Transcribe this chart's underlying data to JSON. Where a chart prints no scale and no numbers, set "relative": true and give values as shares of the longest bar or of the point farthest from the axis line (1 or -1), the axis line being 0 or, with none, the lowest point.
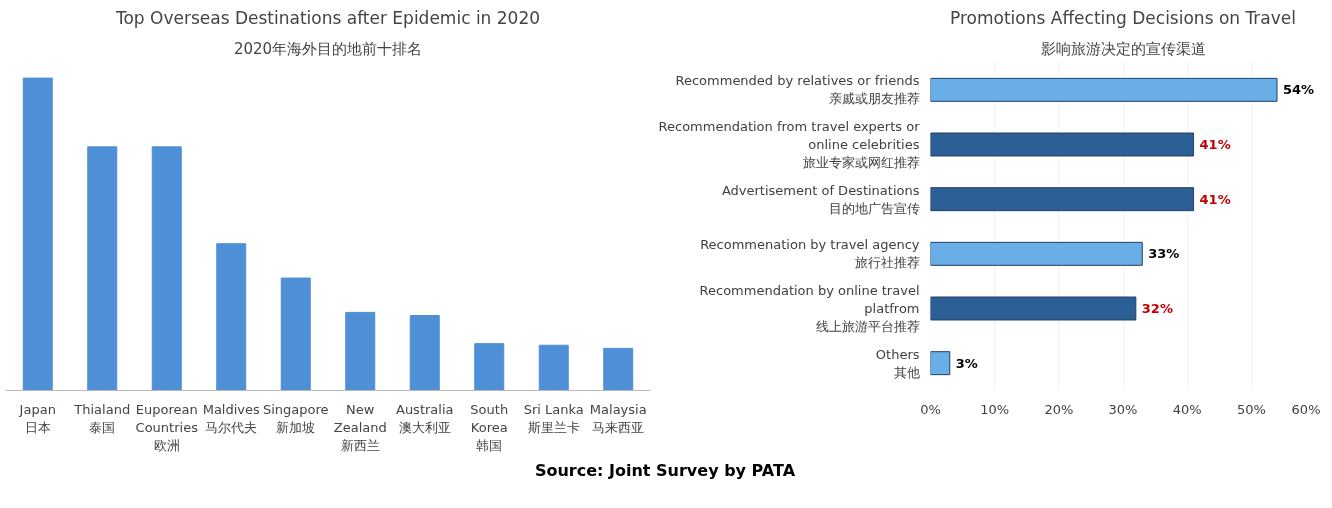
{
  "chart_data": [
    {
      "type": "bar",
      "title": "Top Overseas Destinations after Epidemic in 2020",
      "subtitle": "2020年海外目的地前十排名",
      "relative": true,
      "categories": [
        "Japan\n日本",
        "Thialand\n泰国",
        "Euporean\nCountries\n欧洲",
        "Maldives\n马尔代夫",
        "Singapore\n新加坡",
        "New\nZealand\n新西兰",
        "Australia\n澳大利亚",
        "South\nKorea\n韩国",
        "Sri Lanka\n斯里兰卡",
        "Malaysia\n马来西亚"
      ],
      "values": [
        1,
        0.78,
        0.78,
        0.47,
        0.36,
        0.25,
        0.24,
        0.15,
        0.145,
        0.135
      ],
      "color": "#4f8fd6",
      "grid": false
    },
    {
      "type": "bar",
      "orientation": "horizontal",
      "title": "Promotions Affecting Decisions on Travel",
      "subtitle": "影响旅游决定的宣传渠道",
      "categories": [
        "Recommended by relatives or friends\n亲戚或朋友推荐",
        "Recommendation from travel experts or\nonline celebrities\n旅业专家或网红推荐",
        "Advertisement of Destinations\n目的地广告宣传",
        "Recommenation by travel agency\n旅行社推荐",
        "Recommendation by online travel\nplatfrom\n线上旅游平台推荐",
        "Others\n其他"
      ],
      "values": [
        54,
        41,
        41,
        33,
        32,
        3
      ],
      "colors": [
        "#6aaee8",
        "#2c5f96",
        "#2c5f96",
        "#6aaee8",
        "#2c5f96",
        "#6aaee8"
      ],
      "value_labels": [
        "54%",
        "41%",
        "41%",
        "33%",
        "32%",
        "3%"
      ],
      "xlim": [
        0,
        60
      ],
      "xticks": [
        {
          "value": 0,
          "label": "0%"
        },
        {
          "value": 10,
          "label": "10%"
        },
        {
          "value": 20,
          "label": "20%"
        },
        {
          "value": 30,
          "label": "30%"
        },
        {
          "value": 40,
          "label": "40%"
        },
        {
          "value": 50,
          "label": "50%"
        },
        {
          "value": 60,
          "label": "60%"
        }
      ],
      "grid": "x",
      "annotations": [
        "Source: Joint Survey by PATA"
      ]
    }
  ]
}
